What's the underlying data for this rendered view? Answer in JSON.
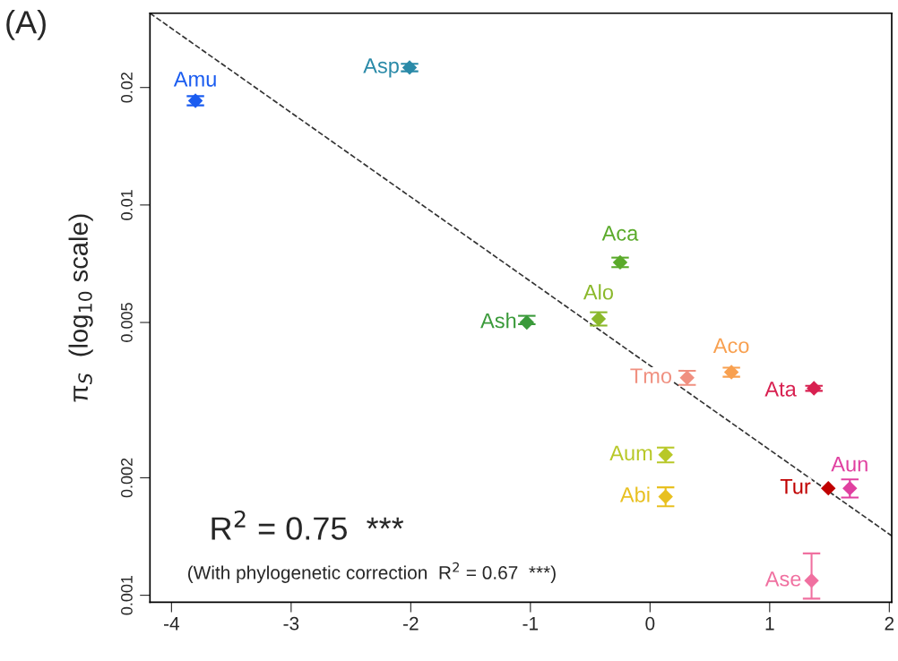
{
  "chart_data": {
    "type": "scatter",
    "ylabel": "π$_{S}$  (log$_{10}$ scale)",
    "xlim": [
      -4.18,
      2.02
    ],
    "xticks": [
      -4,
      -3,
      -2,
      -1,
      0,
      1,
      2
    ],
    "ylim": [
      0.00096,
      0.031
    ],
    "yticks": [
      0.001,
      0.002,
      0.005,
      0.01,
      0.02
    ],
    "log": "y",
    "marker": "diamond",
    "grid": false,
    "annotations": [
      "(A)",
      "R$^{2}$ = 0.75  ***",
      "(With phylogenetic correction  R$^{2}$ = 0.67  ***)"
    ],
    "series": [
      {
        "name": "Amu",
        "color": "#1a5cf0",
        "x": [
          -3.8
        ],
        "values": [
          0.0185
        ],
        "errors": [
          0.0005
        ]
      },
      {
        "name": "Asp",
        "color": "#2a8aa8",
        "x": [
          -2.01
        ],
        "values": [
          0.0225
        ],
        "errors": [
          0.0005
        ]
      },
      {
        "name": "Aca",
        "color": "#5aaa2a",
        "x": [
          -0.25
        ],
        "values": [
          0.00713
        ],
        "errors": [
          0.0002
        ]
      },
      {
        "name": "Alo",
        "color": "#8ab82a",
        "x": [
          -0.43
        ],
        "values": [
          0.00511
        ],
        "errors": [
          0.0002
        ]
      },
      {
        "name": "Ash",
        "color": "#3a9a3a",
        "x": [
          -1.03
        ],
        "values": [
          0.005
        ],
        "errors": [
          [
            0.00495,
            0.0052
          ]
        ]
      },
      {
        "name": "Tmo",
        "color": "#f09080",
        "x": [
          0.31
        ],
        "values": [
          0.00361
        ],
        "errors": [
          0.00015
        ]
      },
      {
        "name": "Aco",
        "color": "#f8a050",
        "x": [
          0.68
        ],
        "values": [
          0.00373
        ],
        "errors": [
          0.0001
        ]
      },
      {
        "name": "Ata",
        "color": "#d82050",
        "x": [
          1.37
        ],
        "values": [
          0.00339
        ],
        "errors": [
          5e-05
        ]
      },
      {
        "name": "Aum",
        "color": "#b8c828",
        "x": [
          0.13
        ],
        "values": [
          0.00229
        ],
        "errors": [
          0.0001
        ]
      },
      {
        "name": "Abi",
        "color": "#e8c020",
        "x": [
          0.13
        ],
        "values": [
          0.00179
        ],
        "errors": [
          0.0001
        ]
      },
      {
        "name": "Tur",
        "color": "#c00000",
        "x": [
          1.49
        ],
        "values": [
          0.00188
        ]
      },
      {
        "name": "Aun",
        "color": "#e040a0",
        "x": [
          1.67
        ],
        "values": [
          0.00188
        ],
        "errors": [
          0.0001
        ]
      },
      {
        "name": "Ase",
        "color": "#f070a0",
        "x": [
          1.35
        ],
        "values": [
          0.00109
        ],
        "errors": [
          [
            0.00098,
            0.00128
          ]
        ]
      },
      {
        "type": "line",
        "color": "#333333",
        "line_style": "dashed",
        "marker": "none",
        "x": [
          -4.18,
          2.02
        ],
        "values": [
          0.031,
          0.00142
        ]
      }
    ]
  }
}
